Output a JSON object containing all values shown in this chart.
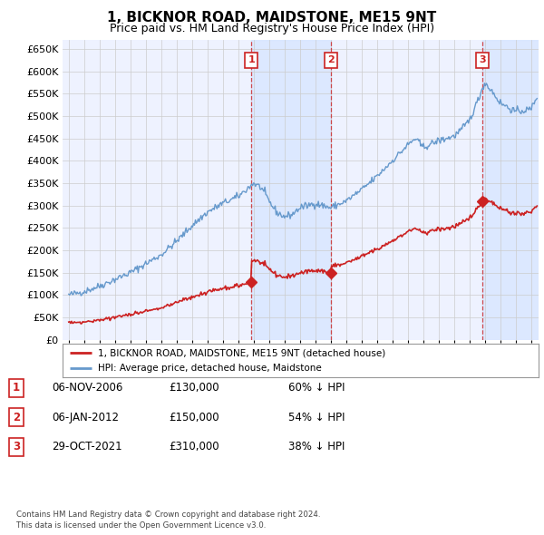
{
  "title": "1, BICKNOR ROAD, MAIDSTONE, ME15 9NT",
  "subtitle": "Price paid vs. HM Land Registry's House Price Index (HPI)",
  "title_fontsize": 11,
  "subtitle_fontsize": 9,
  "yticks": [
    0,
    50000,
    100000,
    150000,
    200000,
    250000,
    300000,
    350000,
    400000,
    450000,
    500000,
    550000,
    600000,
    650000
  ],
  "ylim": [
    0,
    670000
  ],
  "xlim_left": 1994.6,
  "xlim_right": 2025.5,
  "background_color": "#ffffff",
  "plot_bg_color": "#eef2ff",
  "shade_color": "#d8e6ff",
  "grid_color": "#cccccc",
  "hpi_color": "#6699cc",
  "price_color": "#cc2222",
  "transactions": [
    {
      "num": 1,
      "price": 130000,
      "x_approx": 2006.85
    },
    {
      "num": 2,
      "price": 150000,
      "x_approx": 2012.02
    },
    {
      "num": 3,
      "price": 310000,
      "x_approx": 2021.83
    }
  ],
  "legend_entries": [
    "1, BICKNOR ROAD, MAIDSTONE, ME15 9NT (detached house)",
    "HPI: Average price, detached house, Maidstone"
  ],
  "footer": "Contains HM Land Registry data © Crown copyright and database right 2024.\nThis data is licensed under the Open Government Licence v3.0.",
  "table_rows": [
    [
      "1",
      "06-NOV-2006",
      "£130,000",
      "60% ↓ HPI"
    ],
    [
      "2",
      "06-JAN-2012",
      "£150,000",
      "54% ↓ HPI"
    ],
    [
      "3",
      "29-OCT-2021",
      "£310,000",
      "38% ↓ HPI"
    ]
  ]
}
